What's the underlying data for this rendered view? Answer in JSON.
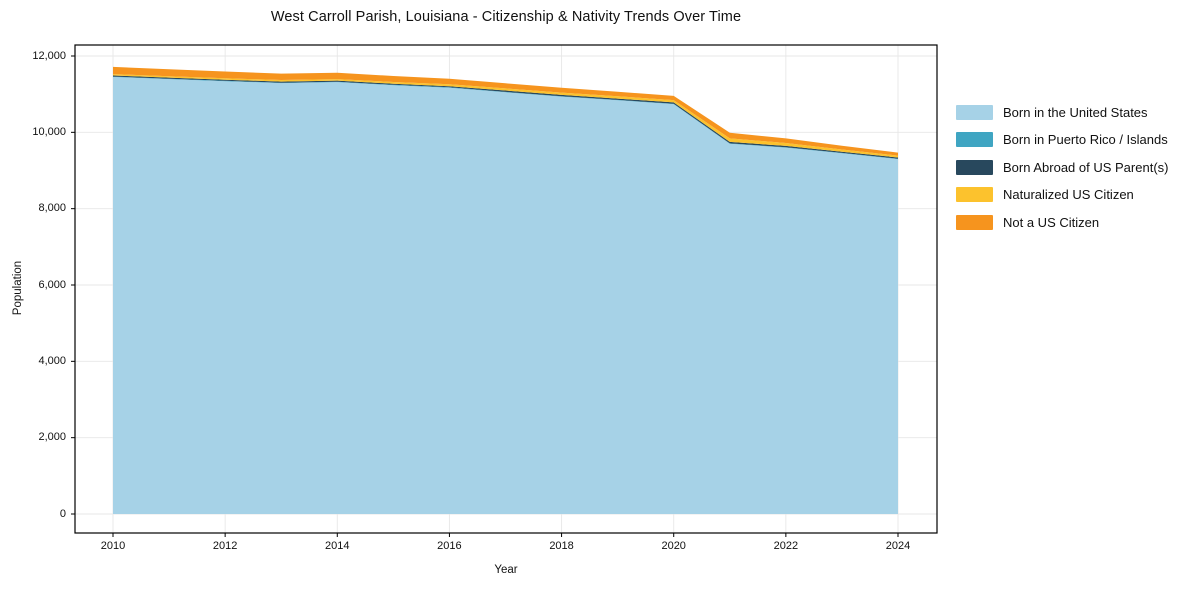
{
  "title": "West Carroll Parish, Louisiana - Citizenship & Nativity Trends Over Time",
  "chart_data": {
    "type": "area",
    "stacked": true,
    "title": "West Carroll Parish, Louisiana - Citizenship & Nativity Trends Over Time",
    "xlabel": "Year",
    "ylabel": "Population",
    "x": [
      2010,
      2011,
      2012,
      2013,
      2014,
      2015,
      2016,
      2017,
      2018,
      2019,
      2020,
      2021,
      2022,
      2023,
      2024
    ],
    "series": [
      {
        "name": "Born in the United States",
        "color": "#a6d2e7",
        "values": [
          11450,
          11395,
          11340,
          11290,
          11315,
          11235,
          11170,
          11050,
          10935,
          10840,
          10740,
          9700,
          9600,
          9450,
          9300
        ]
      },
      {
        "name": "Born in Puerto Rico / Islands",
        "color": "#3fa5c2",
        "values": [
          10,
          10,
          10,
          10,
          10,
          10,
          10,
          10,
          10,
          10,
          10,
          10,
          10,
          10,
          10
        ]
      },
      {
        "name": "Born Abroad of US Parent(s)",
        "color": "#28485d",
        "values": [
          30,
          30,
          30,
          30,
          30,
          30,
          30,
          35,
          35,
          35,
          35,
          40,
          35,
          30,
          30
        ]
      },
      {
        "name": "Naturalized US Citizen",
        "color": "#fcc22d",
        "values": [
          35,
          35,
          35,
          40,
          40,
          45,
          50,
          55,
          60,
          60,
          60,
          90,
          75,
          60,
          50
        ]
      },
      {
        "name": "Not a US Citizen",
        "color": "#f6941e",
        "values": [
          190,
          185,
          180,
          170,
          165,
          155,
          145,
          135,
          130,
          120,
          110,
          150,
          120,
          100,
          80
        ]
      }
    ],
    "x_ticks": [
      2010,
      2012,
      2014,
      2016,
      2018,
      2020,
      2022,
      2024
    ],
    "y_ticks": [
      0,
      2000,
      4000,
      6000,
      8000,
      10000,
      12000
    ],
    "y_tick_labels": [
      "0",
      "2,000",
      "4,000",
      "6,000",
      "8,000",
      "10,000",
      "12,000"
    ],
    "ylim": [
      0,
      12000
    ],
    "grid": true,
    "legend_position": "right-outside",
    "colors": {
      "grid": "#e7e7e7",
      "spine": "#000000",
      "background": "#ffffff",
      "text": "#111111"
    }
  }
}
